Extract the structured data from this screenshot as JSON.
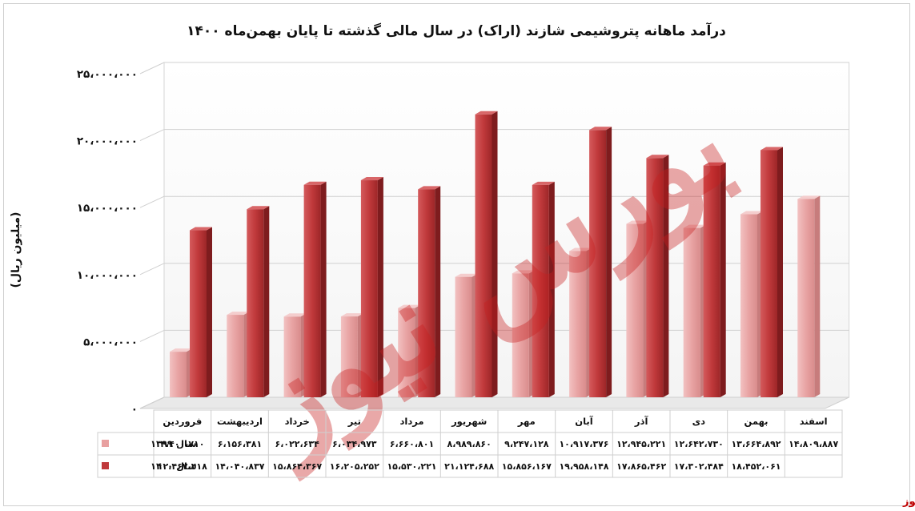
{
  "chart_data": {
    "type": "bar",
    "title": "درآمد ماهانه پتروشیمی شازند (اراک) در سال مالی گذشته تا پایان بهمن‌ماه ۱۴۰۰",
    "ylabel": "(میلیون ریال)",
    "xlabel": "",
    "ylim": [
      0,
      25000000
    ],
    "y_ticks": [
      {
        "value": 0,
        "label": "۰"
      },
      {
        "value": 5000000,
        "label": "۵،۰۰۰،۰۰۰"
      },
      {
        "value": 10000000,
        "label": "۱۰،۰۰۰،۰۰۰"
      },
      {
        "value": 15000000,
        "label": "۱۵،۰۰۰،۰۰۰"
      },
      {
        "value": 20000000,
        "label": "۲۰،۰۰۰،۰۰۰"
      },
      {
        "value": 25000000,
        "label": "۲۵،۰۰۰،۰۰۰"
      }
    ],
    "grid": true,
    "legend_placement": "table-left",
    "categories": [
      "فروردین",
      "اردیبهشت",
      "خرداد",
      "تیر",
      "مرداد",
      "شهریور",
      "مهر",
      "آبان",
      "آذر",
      "دی",
      "بهمن",
      "اسفند"
    ],
    "series": [
      {
        "name": "سال ۱۳۹۹",
        "color": "#e8a0a0",
        "values": [
          3400710,
          6156381,
          6022634,
          6034973,
          6660801,
          8989860,
          9247128,
          10917376,
          12945221,
          12642730,
          13664892,
          14809887
        ],
        "labels": [
          "۳،۴۰۰،۷۱۰",
          "۶،۱۵۶،۳۸۱",
          "۶،۰۲۲،۶۳۴",
          "۶،۰۳۴،۹۷۳",
          "۶،۶۶۰،۸۰۱",
          "۸،۹۸۹،۸۶۰",
          "۹،۲۴۷،۱۲۸",
          "۱۰،۹۱۷،۳۷۶",
          "۱۲،۹۴۵،۲۲۱",
          "۱۲،۶۴۲،۷۳۰",
          "۱۳،۶۶۴،۸۹۲",
          "۱۴،۸۰۹،۸۸۷"
        ]
      },
      {
        "name": "سال ۱۴۰۰",
        "color": "#c0393b",
        "values": [
          12467418,
          14040837,
          15864367,
          16205252,
          15530221,
          21124688,
          15856167,
          19958148,
          17865462,
          17302484,
          18452061,
          null
        ],
        "labels": [
          "۱۲،۴۶۷،۴۱۸",
          "۱۴،۰۴۰،۸۳۷",
          "۱۵،۸۶۴،۳۶۷",
          "۱۶،۲۰۵،۲۵۲",
          "۱۵،۵۳۰،۲۲۱",
          "۲۱،۱۲۴،۶۸۸",
          "۱۵،۸۵۶،۱۶۷",
          "۱۹،۹۵۸،۱۴۸",
          "۱۷،۸۶۵،۴۶۲",
          "۱۷،۳۰۲،۴۸۴",
          "۱۸،۴۵۲،۰۶۱",
          ""
        ]
      }
    ]
  },
  "watermark": "بورس نیوز",
  "source": "بورس نیوز"
}
